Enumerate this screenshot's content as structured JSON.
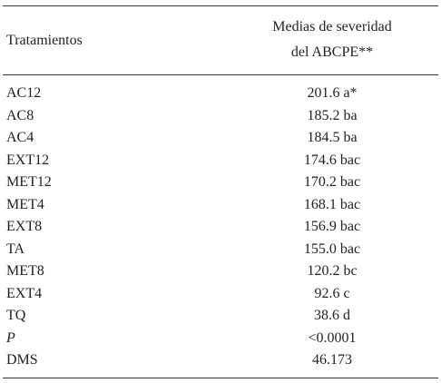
{
  "table": {
    "header": {
      "treatment": "Tratamientos",
      "value": [
        "Medias de severidad",
        "del ABCPE**"
      ]
    },
    "rows": [
      [
        "AC12",
        "201.6 a*"
      ],
      [
        "AC8",
        "185.2 ba"
      ],
      [
        "AC4",
        "184.5 ba"
      ],
      [
        "EXT12",
        "174.6 bac"
      ],
      [
        "MET12",
        "170.2 bac"
      ],
      [
        "MET4",
        "168.1 bac"
      ],
      [
        "EXT8",
        "156.9 bac"
      ],
      [
        "TA",
        "155.0 bac"
      ],
      [
        "MET8",
        "120.2 bc"
      ],
      [
        "EXT4",
        "92.6 c"
      ],
      [
        "TQ",
        "38.6 d"
      ],
      [
        "P",
        "<0.0001"
      ],
      [
        "DMS",
        "46.173"
      ]
    ]
  }
}
